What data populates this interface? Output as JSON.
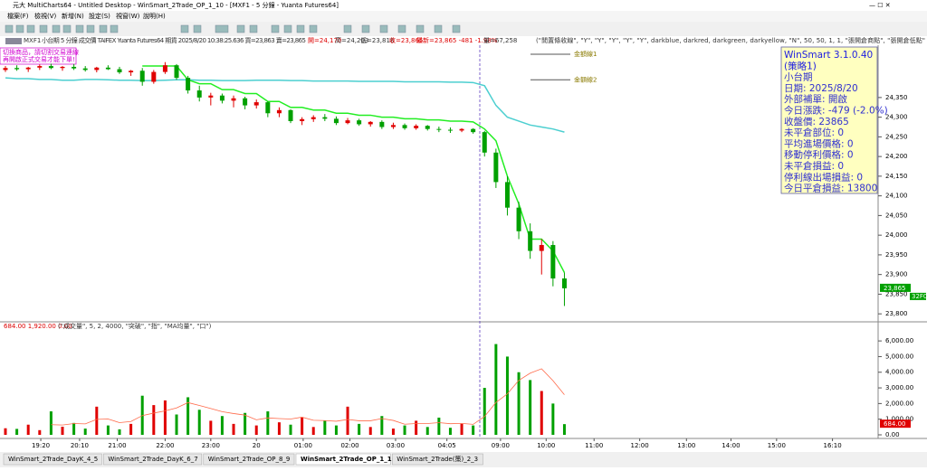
{
  "window": {
    "title": "元大 MultiCharts64 - Untitled Desktop - WinSmart_2Trade_OP_1_10 - [MXF1 - 5 分鐘 - Yuanta Futures64]",
    "menu": [
      "檔案(F)",
      "檢視(V)",
      "新增(N)",
      "設定(S)",
      "視窗(W)",
      "說明(H)"
    ],
    "tabs": [
      "WinSmart_2Trade_DayK_4_5",
      "WinSmart_2Trade_DayK_6_7",
      "WinSmart_2Trade_OP_8_9",
      "WinSmart_2Trade_OP_1_10",
      "WinSmart_2Trade(策)_2_3"
    ],
    "active_tab": 3
  },
  "info_bar": {
    "symbol": "MXF1",
    "desc": "小台期  5 分鐘  成交價  TAIFEX  Yuanta Futures64  期貨  2025/8/20  10:38:25.636  買=23,863  賣=23,865",
    "open": "開=24,170",
    "high": "高=24,203",
    "low": "低=23,818",
    "close": "收=23,865",
    "last": "最新=23,865  -481  -1.98%",
    "volume": "量=67,258",
    "params": "(\"閒置條收線\", \"Y\", \"Y\", \"Y\", \"Y\", \"Y\", darkblue, darkred, darkgreen, darkyellow, \"N\", 50, 50, 1, 1, \"張開倉商點\", \"張開倉低點\""
  },
  "warning": [
    "切換商品，請切割交易連線",
    "再開啟正式交易才能下單!"
  ],
  "strategy_box": {
    "lines": [
      "WinSmart 3.1.0.40",
      "(策略1)",
      "小台期",
      "日期: 2025/8/20",
      "外部補單: 開啟",
      "今日漲跌: -479 (-2.0%)",
      "收盤價: 23865",
      "未平倉部位: 0",
      "平均進場價格: 0",
      "移動停利價格: 0",
      "未平倉損益: 0",
      "停利線出場損益: 0",
      "今日平倉損益: 13800"
    ]
  },
  "chart_data": [
    {
      "type": "candlestick",
      "up_color": "#e00000",
      "down_color": "#00a000",
      "ylim": [
        23782,
        24483
      ],
      "yticks": [
        {
          "value": 23800,
          "label": "23,800"
        },
        {
          "value": 23850,
          "label": "23,850"
        },
        {
          "value": 23900,
          "label": "23,900"
        },
        {
          "value": 23950,
          "label": "23,950"
        },
        {
          "value": 24000,
          "label": "24,000"
        },
        {
          "value": 24050,
          "label": "24,050"
        },
        {
          "value": 24100,
          "label": "24,100"
        },
        {
          "value": 24150,
          "label": "24,150"
        },
        {
          "value": 24200,
          "label": "24,200"
        },
        {
          "value": 24250,
          "label": "24,250"
        },
        {
          "value": 24300,
          "label": "24,300"
        },
        {
          "value": 24350,
          "label": "24,350"
        }
      ],
      "xlim": [
        -0.476,
        76.5
      ],
      "xticks": [
        {
          "value": 3.1,
          "label": "19:20"
        },
        {
          "value": 6.5,
          "label": "20:10"
        },
        {
          "value": 9.8,
          "label": "21:00"
        },
        {
          "value": 14.0,
          "label": "22:00"
        },
        {
          "value": 18.0,
          "label": "23:00"
        },
        {
          "value": 22.0,
          "label": "20"
        },
        {
          "value": 26.1,
          "label": "01:00"
        },
        {
          "value": 30.2,
          "label": "02:00"
        },
        {
          "value": 34.2,
          "label": "03:00"
        },
        {
          "value": 38.7,
          "label": "04:05"
        },
        {
          "value": 43.4,
          "label": "09:00"
        },
        {
          "value": 47.4,
          "label": "10:00"
        },
        {
          "value": 51.6,
          "label": "11:00"
        },
        {
          "value": 55.6,
          "label": "12:00"
        },
        {
          "value": 59.7,
          "label": "13:00"
        },
        {
          "value": 63.6,
          "label": "14:00"
        },
        {
          "value": 67.6,
          "label": "15:00"
        },
        {
          "value": 72.5,
          "label": "16:10"
        }
      ],
      "candles": [
        [
          24420,
          24430,
          24415,
          24425
        ],
        [
          24425,
          24432,
          24418,
          24422
        ],
        [
          24422,
          24428,
          24415,
          24426
        ],
        [
          24426,
          24434,
          24420,
          24430
        ],
        [
          24430,
          24436,
          24422,
          24425
        ],
        [
          24425,
          24430,
          24418,
          24428
        ],
        [
          24428,
          24435,
          24420,
          24424
        ],
        [
          24424,
          24430,
          24416,
          24420
        ],
        [
          24420,
          24428,
          24414,
          24426
        ],
        [
          24426,
          24432,
          24420,
          24422
        ],
        [
          24422,
          24428,
          24410,
          24414
        ],
        [
          24414,
          24420,
          24405,
          24418
        ],
        [
          24418,
          24425,
          24380,
          24390
        ],
        [
          24390,
          24420,
          24385,
          24415
        ],
        [
          24415,
          24440,
          24410,
          24432
        ],
        [
          24432,
          24435,
          24395,
          24400
        ],
        [
          24400,
          24405,
          24360,
          24368
        ],
        [
          24368,
          24380,
          24340,
          24350
        ],
        [
          24350,
          24362,
          24330,
          24355
        ],
        [
          24355,
          24360,
          24335,
          24342
        ],
        [
          24342,
          24355,
          24325,
          24348
        ],
        [
          24348,
          24352,
          24320,
          24330
        ],
        [
          24330,
          24345,
          24322,
          24338
        ],
        [
          24338,
          24340,
          24300,
          24310
        ],
        [
          24310,
          24325,
          24300,
          24318
        ],
        [
          24318,
          24320,
          24285,
          24290
        ],
        [
          24290,
          24300,
          24280,
          24295
        ],
        [
          24295,
          24305,
          24288,
          24300
        ],
        [
          24300,
          24308,
          24290,
          24296
        ],
        [
          24296,
          24302,
          24280,
          24285
        ],
        [
          24285,
          24298,
          24282,
          24292
        ],
        [
          24292,
          24296,
          24278,
          24282
        ],
        [
          24282,
          24290,
          24276,
          24288
        ],
        [
          24288,
          24292,
          24270,
          24275
        ],
        [
          24275,
          24286,
          24270,
          24280
        ],
        [
          24280,
          24284,
          24268,
          24272
        ],
        [
          24272,
          24282,
          24268,
          24278
        ],
        [
          24278,
          24280,
          24266,
          24270
        ],
        [
          24270,
          24276,
          24262,
          24268
        ],
        [
          24268,
          24274,
          24260,
          24266
        ],
        [
          24266,
          24272,
          24262,
          24270
        ],
        [
          24270,
          24272,
          24258,
          24262
        ],
        [
          24262,
          24265,
          24200,
          24210
        ],
        [
          24210,
          24220,
          24120,
          24135
        ],
        [
          24135,
          24150,
          24050,
          24070
        ],
        [
          24070,
          24085,
          23990,
          24010
        ],
        [
          24010,
          24030,
          23940,
          23960
        ],
        [
          23960,
          23990,
          23900,
          23975
        ],
        [
          23975,
          23985,
          23870,
          23890
        ],
        [
          23890,
          23905,
          23820,
          23865
        ]
      ],
      "series": [
        {
          "color": "#4ccfd0",
          "values": [
            24400,
            24398,
            24398,
            24396,
            24396,
            24394,
            24394,
            24396,
            24396,
            24395,
            24394,
            24394,
            24393,
            24393,
            24394,
            24395,
            24395,
            24394,
            24394,
            24393,
            24393,
            24393,
            24394,
            24394,
            24394,
            24393,
            24393,
            24392,
            24392,
            24392,
            24392,
            24391,
            24391,
            24391,
            24391,
            24390,
            24390,
            24390,
            24390,
            24389,
            24389,
            24388,
            24380,
            24330,
            24300,
            24290,
            24280,
            24275,
            24270,
            24262
          ]
        },
        {
          "color": "#22ee22",
          "values": [
            null,
            null,
            null,
            null,
            null,
            null,
            null,
            null,
            null,
            null,
            null,
            null,
            24430,
            24430,
            24430,
            24430,
            24395,
            24385,
            24385,
            24370,
            24370,
            24360,
            24360,
            24340,
            24340,
            24325,
            24325,
            24318,
            24318,
            24310,
            24310,
            24305,
            24305,
            24300,
            24300,
            24296,
            24296,
            24293,
            24293,
            24290,
            24290,
            24288,
            24270,
            24240,
            24150,
            24080,
            23990,
            23990,
            23960,
            23905
          ]
        }
      ],
      "annotations": [
        {
          "text": "金額線1",
          "value": 24460
        },
        {
          "text": "金額線2",
          "value": 24395
        }
      ],
      "last_price": {
        "value": 23865,
        "label": "23,865"
      },
      "countdown": "32F0"
    },
    {
      "type": "bar",
      "header": "684.00  1,920.00  0.00",
      "params": "(\"成交量\", 5, 2, 4000, \"突破\", \"指\", \"MA均量\", \"口\")",
      "ylim": [
        0,
        6700
      ],
      "yticks": [
        {
          "value": 0,
          "label": "0.00"
        },
        {
          "value": 1000,
          "label": "1,000.00"
        },
        {
          "value": 2000,
          "label": "2,000.00"
        },
        {
          "value": 3000,
          "label": "3,000.00"
        },
        {
          "value": 4000,
          "label": "4,000.00"
        },
        {
          "value": 5000,
          "label": "5,000.00"
        },
        {
          "value": 6000,
          "label": "6,000.00"
        }
      ],
      "values": [
        420,
        380,
        650,
        300,
        1500,
        520,
        760,
        400,
        1800,
        600,
        350,
        700,
        2500,
        1900,
        2200,
        1300,
        2400,
        1600,
        900,
        1200,
        700,
        1400,
        600,
        1500,
        800,
        650,
        1100,
        500,
        900,
        600,
        1800,
        700,
        500,
        1200,
        400,
        600,
        900,
        500,
        1100,
        450,
        700,
        600,
        3000,
        5800,
        5000,
        4000,
        3500,
        2800,
        2000,
        684
      ],
      "ma": {
        "color": "#ff6a4a",
        "values": [
          null,
          null,
          null,
          null,
          650,
          630,
          720,
          700,
          990,
          1010,
          780,
          850,
          1230,
          1390,
          1530,
          1720,
          2060,
          1880,
          1680,
          1480,
          1360,
          1260,
          960,
          1080,
          1040,
          1010,
          1130,
          930,
          910,
          870,
          980,
          900,
          900,
          1040,
          920,
          680,
          720,
          720,
          780,
          710,
          730,
          670,
          1170,
          2070,
          2620,
          3480,
          3940,
          4220,
          3460,
          2560
        ]
      },
      "last_volume": {
        "value": 684,
        "label": "684.00"
      }
    }
  ]
}
